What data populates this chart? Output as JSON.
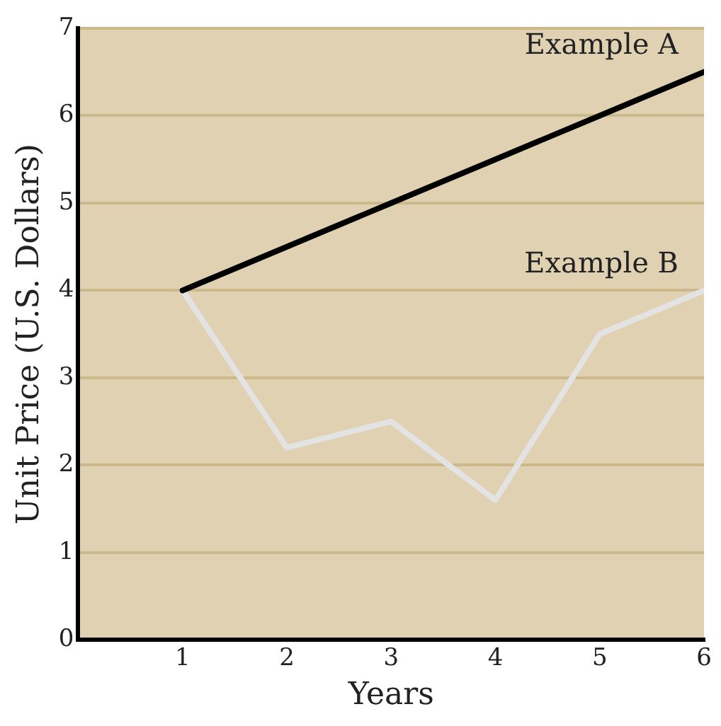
{
  "chart_data": {
    "type": "line",
    "xlabel": "Years",
    "ylabel": "Unit Price (U.S. Dollars)",
    "x": [
      1,
      2,
      3,
      4,
      5,
      6
    ],
    "series": [
      {
        "name": "Example A",
        "color": "#000000",
        "values": [
          4,
          4.5,
          5,
          5.5,
          6,
          6.5
        ]
      },
      {
        "name": "Example B",
        "color": "#e3e3e3",
        "values": [
          4,
          2.2,
          2.5,
          1.6,
          3.5,
          4
        ]
      }
    ],
    "xlim": [
      0,
      6
    ],
    "xticks": [
      1,
      2,
      3,
      4,
      5,
      6
    ],
    "ylim": [
      0,
      7
    ],
    "yticks": [
      0,
      1,
      2,
      3,
      4,
      5,
      6,
      7
    ],
    "grid": "y",
    "legend": false,
    "marker": "none",
    "line_style": "solid"
  }
}
